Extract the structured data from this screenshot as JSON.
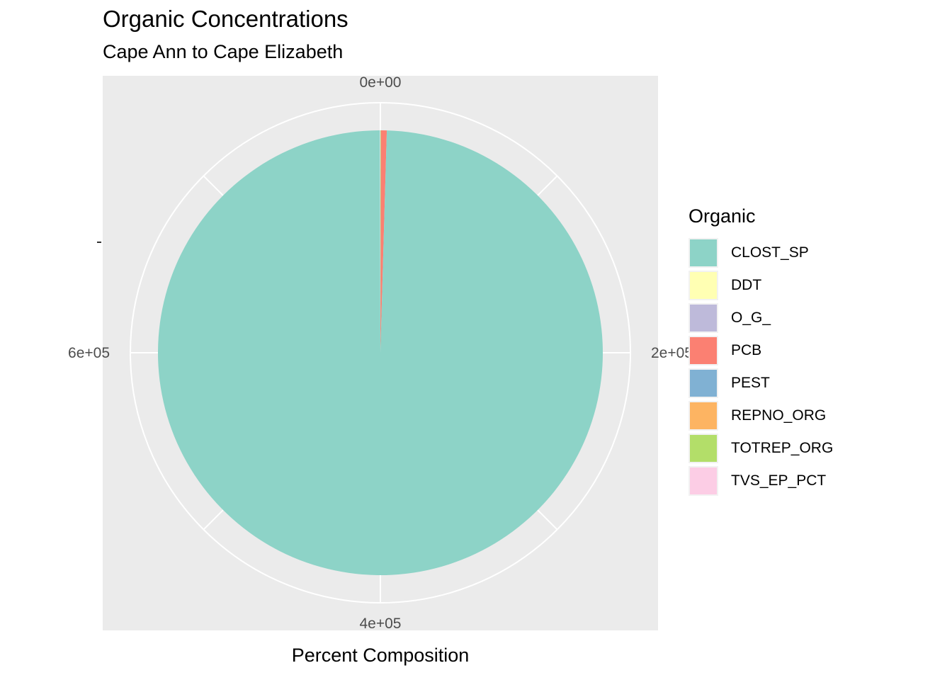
{
  "chart_data": {
    "type": "pie",
    "title": "Organic Concentrations",
    "subtitle": "Cape Ann to Cape Elizabeth",
    "xlabel": "Percent Composition",
    "ylabel": "",
    "legend_title": "Organic",
    "legend_position": "right",
    "axis_range": [
      0,
      800000
    ],
    "ticks": [
      {
        "value": 0,
        "label": "0e+00"
      },
      {
        "value": 200000,
        "label": "2e+05"
      },
      {
        "value": 400000,
        "label": "4e+05"
      },
      {
        "value": 600000,
        "label": "6e+05"
      }
    ],
    "slices": [
      {
        "name": "CLOST_SP",
        "value": 796000,
        "color": "#8DD3C7"
      },
      {
        "name": "DDT",
        "value": 0,
        "color": "#FFFFB3"
      },
      {
        "name": "O_G_",
        "value": 0,
        "color": "#BEBADA"
      },
      {
        "name": "PCB",
        "value": 3400,
        "color": "#FB8072"
      },
      {
        "name": "PEST",
        "value": 0,
        "color": "#80B1D3"
      },
      {
        "name": "REPNO_ORG",
        "value": 0,
        "color": "#FDB462"
      },
      {
        "name": "TOTREP_ORG",
        "value": 300,
        "color": "#B3DE69"
      },
      {
        "name": "TVS_EP_PCT",
        "value": 0,
        "color": "#FCCDE5"
      }
    ],
    "grid": true,
    "panel_background": "#EBEBEB",
    "grid_color": "#FFFFFF"
  }
}
